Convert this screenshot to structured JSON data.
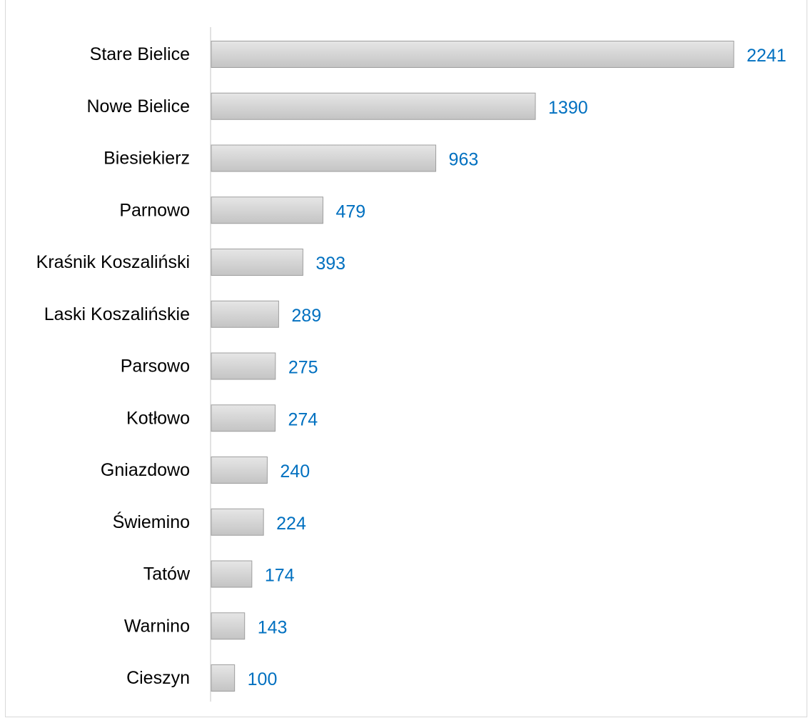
{
  "chart_data": {
    "type": "bar",
    "orientation": "horizontal",
    "title": "",
    "xlabel": "",
    "ylabel": "",
    "categories": [
      "Stare Bielice",
      "Nowe Bielice",
      "Biesiekierz",
      "Parnowo",
      "Kraśnik Koszaliński",
      "Laski Koszalińskie",
      "Parsowo",
      "Kotłowo",
      "Gniazdowo",
      "Świemino",
      "Tatów",
      "Warnino",
      "Cieszyn"
    ],
    "values": [
      2241,
      1390,
      963,
      479,
      393,
      289,
      275,
      274,
      240,
      224,
      174,
      143,
      100
    ],
    "data_labels": [
      "2241",
      "1390",
      "963",
      "479",
      "393",
      "289",
      "275",
      "274",
      "240",
      "224",
      "174",
      "143",
      "100"
    ],
    "xlim": [
      0,
      2241
    ],
    "grid": false,
    "legend": "none",
    "colors": {
      "bar_fill_light": "#e6e6e6",
      "bar_fill_dark": "#c4c4c4",
      "bar_stroke": "#9e9e9e",
      "value_label": "#0070c0",
      "category_label": "#000000",
      "axis_line": "#d9d9d9",
      "frame": "#d9d9d9"
    }
  }
}
